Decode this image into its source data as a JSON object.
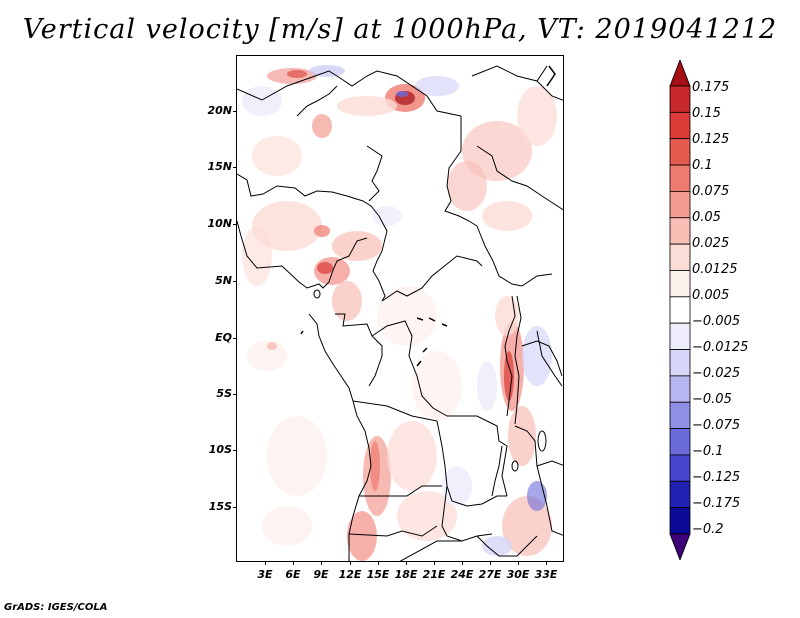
{
  "title": "Vertical velocity [m/s] at 1000hPa, VT: 2019041212",
  "credit": "GrADS: IGES/COLA",
  "map": {
    "lat_ticks": [
      "20N",
      "15N",
      "10N",
      "5N",
      "EQ",
      "5S",
      "10S",
      "15S"
    ],
    "lon_ticks": [
      "3E",
      "6E",
      "9E",
      "12E",
      "15E",
      "18E",
      "21E",
      "24E",
      "27E",
      "30E",
      "33E"
    ]
  },
  "colorbar": {
    "levels": [
      "0.175",
      "0.15",
      "0.125",
      "0.1",
      "0.075",
      "0.05",
      "0.025",
      "0.0125",
      "0.005",
      "−0.005",
      "−0.0125",
      "−0.025",
      "−0.05",
      "−0.075",
      "−0.1",
      "−0.125",
      "−0.175",
      "−0.2"
    ],
    "colors": [
      "#a50f15",
      "#c8282a",
      "#dc3c38",
      "#e65a50",
      "#ee7b70",
      "#f49c93",
      "#f9bdb5",
      "#fcdcd6",
      "#fdf1ee",
      "#ffffff",
      "#eeeefd",
      "#d6d6f8",
      "#b6b6f0",
      "#8f8fe6",
      "#6a6ada",
      "#4646cc",
      "#2222b2",
      "#0a0a96",
      "#3c0078"
    ]
  }
}
